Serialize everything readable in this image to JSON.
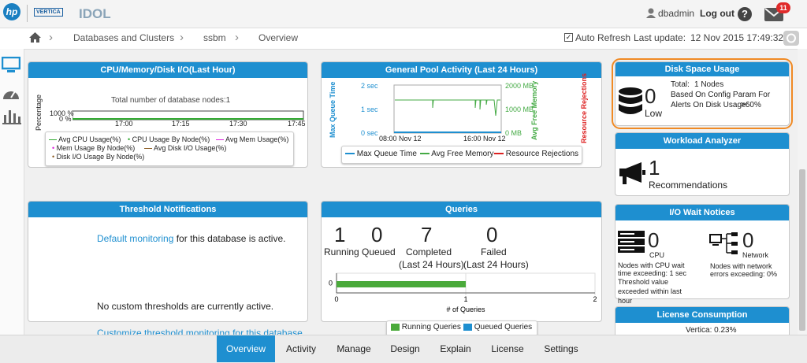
{
  "header": {
    "brand": "hp",
    "product": "VERTICA",
    "app": "IDOL",
    "user": "dbadmin",
    "logout": "Log out",
    "help": "?",
    "mail_count": "11"
  },
  "breadcrumb": [
    "Databases and Clusters",
    "ssbm",
    "Overview"
  ],
  "refresh": {
    "label": "Auto Refresh",
    "last_update_label": "Last update:",
    "last_update": "12 Nov 2015 17:49:32"
  },
  "cpu": {
    "title": "CPU/Memory/Disk I/O(Last Hour)",
    "y_label": "Percentage",
    "note": "Total number of database nodes:1",
    "yticks": [
      "1000 %",
      "0 %"
    ],
    "xticks": [
      "17:00",
      "17:15",
      "17:30",
      "17:45"
    ],
    "legend": [
      "Avg CPU Usage(%)",
      "CPU Usage By Node(%)",
      "Avg Mem Usage(%)",
      "Mem Usage By Node(%)",
      "Avg Disk I/O Usage(%)",
      "Disk I/O Usage By Node(%)"
    ]
  },
  "pool": {
    "title": "General Pool Activity (Last 24 Hours)",
    "y_label": "Max Queue Time",
    "y2_label": "Avg Free Memory",
    "y3_label": "Resource Rejections",
    "yticks": [
      "2 sec",
      "1 sec",
      "0 sec"
    ],
    "y2ticks": [
      "2000 MB",
      "1000 MB",
      "0 MB"
    ],
    "xticks": [
      "08:00 Nov 12",
      "16:00 Nov 12"
    ],
    "legend": [
      "Max Queue Time",
      "Avg Free Memory",
      "Resource Rejections"
    ]
  },
  "threshold": {
    "title": "Threshold Notifications",
    "link": "Default monitoring",
    "active_text": " for this database is active.",
    "none_text": "No custom thresholds are currently active.",
    "customize": "Customize threshold monitoring for this database"
  },
  "queries": {
    "title": "Queries",
    "stats": [
      {
        "value": "1",
        "label": "Running"
      },
      {
        "value": "0",
        "label": "Queued"
      },
      {
        "value": "7",
        "label": "Completed",
        "sub": "(Last 24 Hours)"
      },
      {
        "value": "0",
        "label": "Failed",
        "sub": "(Last 24 Hours)"
      }
    ],
    "chart": {
      "category": "0",
      "running": 1,
      "xlim": [
        0,
        2
      ],
      "xticks": [
        0,
        1,
        2
      ],
      "x_label": "# of Queries"
    },
    "legend": [
      "Running Queries",
      "Queued Queries"
    ]
  },
  "disk": {
    "title": "Disk Space Usage",
    "value": "0",
    "level": "Low",
    "total_label": "Total:",
    "total": "1 Nodes",
    "line2": "Based On Config Param For",
    "line3": "Alerts On Disk Usage:",
    "threshold": ">60%"
  },
  "workload": {
    "title": "Workload Analyzer",
    "value": "1",
    "label": "Recommendations"
  },
  "io": {
    "title": "I/O Wait Notices",
    "cpu_value": "0",
    "cpu_label": "CPU",
    "cpu_text": "Nodes with CPU wait time exceeding: 1 sec",
    "cpu_note": "Threshold value exceeded within last hour",
    "net_value": "0",
    "net_label": "Network",
    "net_text": "Nodes with network errors exceeding: 0%"
  },
  "license": {
    "title": "License Consumption",
    "text": "Vertica: 0.23%"
  },
  "nav": [
    "Overview",
    "Activity",
    "Manage",
    "Design",
    "Explain",
    "License",
    "Settings"
  ]
}
